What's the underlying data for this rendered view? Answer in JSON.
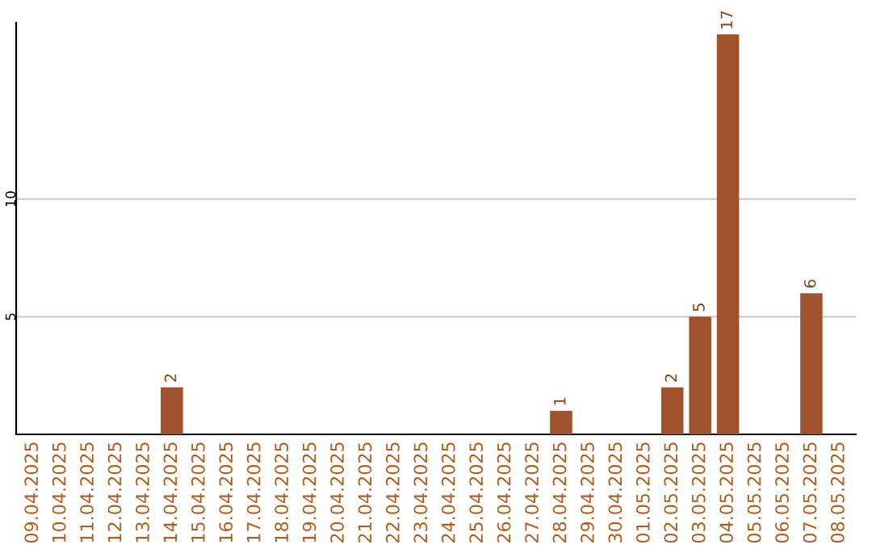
{
  "chart_data": {
    "type": "bar",
    "categories": [
      "09.04.2025",
      "10.04.2025",
      "11.04.2025",
      "12.04.2025",
      "13.04.2025",
      "14.04.2025",
      "15.04.2025",
      "16.04.2025",
      "17.04.2025",
      "18.04.2025",
      "19.04.2025",
      "20.04.2025",
      "21.04.2025",
      "22.04.2025",
      "23.04.2025",
      "24.04.2025",
      "25.04.2025",
      "26.04.2025",
      "27.04.2025",
      "28.04.2025",
      "29.04.2025",
      "30.04.2025",
      "01.05.2025",
      "02.05.2025",
      "03.05.2025",
      "04.05.2025",
      "05.05.2025",
      "06.05.2025",
      "07.05.2025",
      "08.05.2025"
    ],
    "values": [
      0,
      0,
      0,
      0,
      0,
      2,
      0,
      0,
      0,
      0,
      0,
      0,
      0,
      0,
      0,
      0,
      0,
      0,
      0,
      1,
      0,
      0,
      0,
      2,
      5,
      17,
      0,
      0,
      6,
      0
    ],
    "value_labels": [
      null,
      null,
      null,
      null,
      null,
      "2",
      null,
      null,
      null,
      null,
      null,
      null,
      null,
      null,
      null,
      null,
      null,
      null,
      null,
      "1",
      null,
      null,
      null,
      "2",
      "5",
      "17",
      null,
      null,
      "6",
      null
    ],
    "color": "#a0522d",
    "ylim": [
      0,
      17.5
    ],
    "yticks": [
      5,
      10
    ],
    "grid": "y"
  }
}
